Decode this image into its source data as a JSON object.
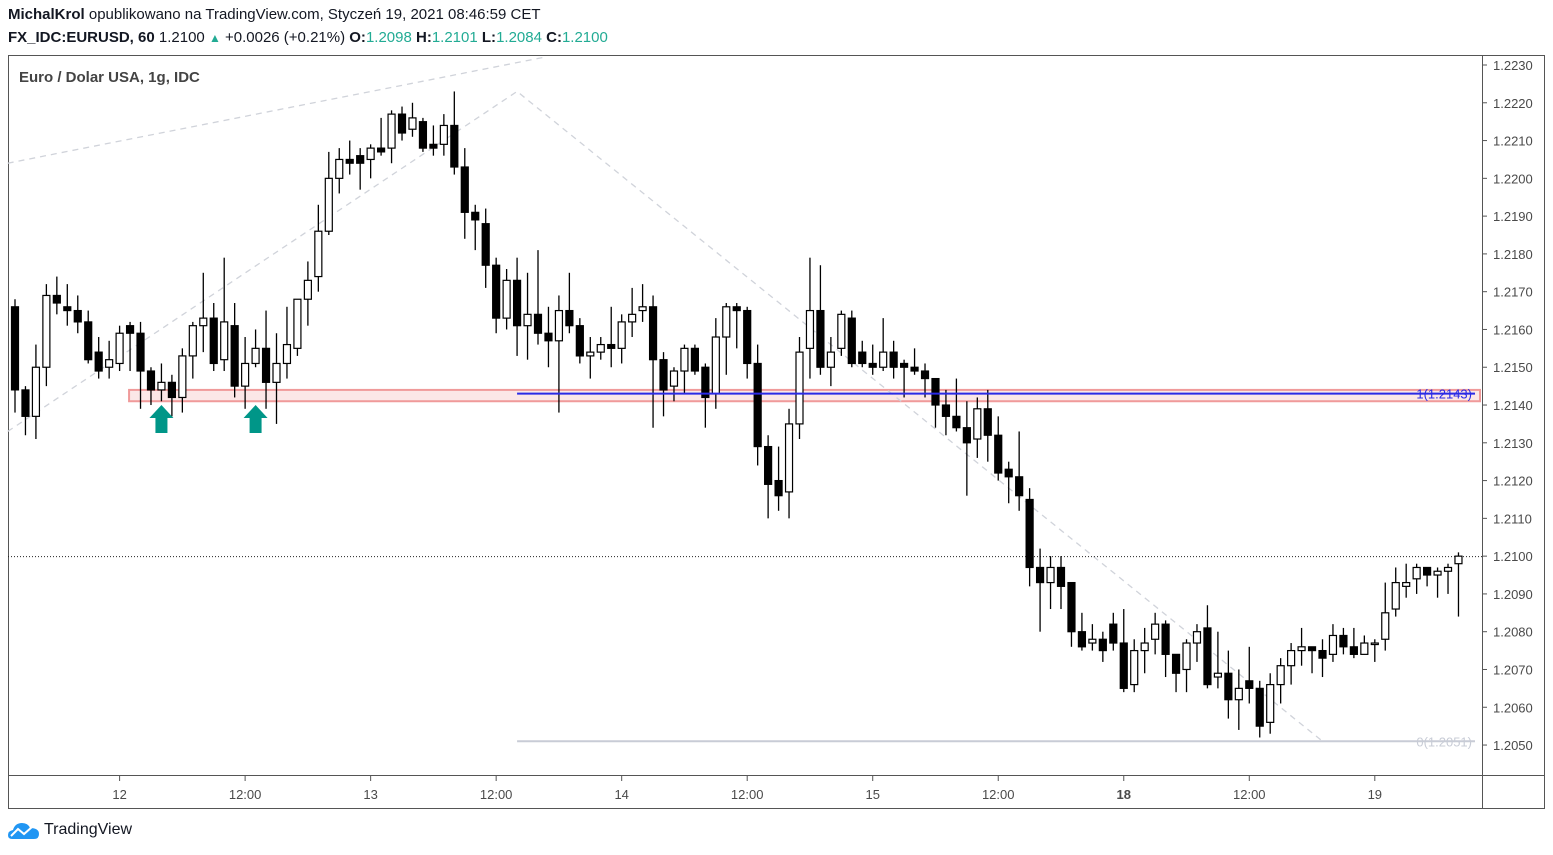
{
  "header": {
    "author": "MichalKrol",
    "published_text": "opublikowano na TradingView.com, Styczeń 19, 2021 08:46:59 CET",
    "symbol": "FX_IDC:EURUSD, 60",
    "last": "1.2100",
    "change": "+0.0026 (+0.21%)",
    "o_label": "O:",
    "o": "1.2098",
    "h_label": "H:",
    "h": "1.2101",
    "l_label": "L:",
    "l": "1.2084",
    "c_label": "C:",
    "c": "1.2100"
  },
  "footer": {
    "brand": "TradingView"
  },
  "colors": {
    "up_fill": "#ffffff",
    "down_fill": "#000000",
    "accent": "#22ab94",
    "level": "#2a2ae6",
    "zone": "#f09a9a",
    "zone_fill": "#fbe7e7",
    "fib0": "#c8ccd6"
  },
  "chart_data": {
    "type": "candlestick",
    "title": "Euro / Dolar USA, 1g, IDC",
    "interval": "1h",
    "ylim": [
      1.2043,
      1.2235
    ],
    "grid": false,
    "y_ticks": [
      "1.2230",
      "1.2220",
      "1.2210",
      "1.2200",
      "1.2190",
      "1.2180",
      "1.2170",
      "1.2160",
      "1.2150",
      "1.2140",
      "1.2130",
      "1.2120",
      "1.2110",
      "1.2100",
      "1.2090",
      "1.2080",
      "1.2070",
      "1.2060",
      "1.2050"
    ],
    "x_ticks": [
      {
        "label": "12",
        "index": 10,
        "bold": false
      },
      {
        "label": "12:00",
        "index": 22,
        "bold": false
      },
      {
        "label": "13",
        "index": 34,
        "bold": false
      },
      {
        "label": "12:00",
        "index": 46,
        "bold": false
      },
      {
        "label": "14",
        "index": 58,
        "bold": false
      },
      {
        "label": "12:00",
        "index": 70,
        "bold": false
      },
      {
        "label": "15",
        "index": 82,
        "bold": false
      },
      {
        "label": "12:00",
        "index": 94,
        "bold": false
      },
      {
        "label": "18",
        "index": 106,
        "bold": true
      },
      {
        "label": "12:00",
        "index": 118,
        "bold": false
      },
      {
        "label": "19",
        "index": 130,
        "bold": false
      }
    ],
    "candles_ohlc": [
      [
        1.2166,
        1.2168,
        1.2138,
        1.2144
      ],
      [
        1.2144,
        1.2145,
        1.2132,
        1.2137
      ],
      [
        1.2137,
        1.2156,
        1.2131,
        1.215
      ],
      [
        1.215,
        1.2172,
        1.2145,
        1.2169
      ],
      [
        1.2169,
        1.2174,
        1.2164,
        1.2167
      ],
      [
        1.2166,
        1.2172,
        1.2161,
        1.2165
      ],
      [
        1.2165,
        1.2169,
        1.2159,
        1.2162
      ],
      [
        1.2162,
        1.2165,
        1.2151,
        1.2152
      ],
      [
        1.2154,
        1.2158,
        1.2147,
        1.2149
      ],
      [
        1.215,
        1.2157,
        1.2147,
        1.2152
      ],
      [
        1.2151,
        1.2161,
        1.2149,
        1.2159
      ],
      [
        1.2161,
        1.2162,
        1.2149,
        1.2159
      ],
      [
        1.2159,
        1.2162,
        1.2139,
        1.2149
      ],
      [
        1.2149,
        1.215,
        1.214,
        1.2144
      ],
      [
        1.2144,
        1.2151,
        1.2141,
        1.2146
      ],
      [
        1.2146,
        1.2148,
        1.2137,
        1.2142
      ],
      [
        1.2142,
        1.2155,
        1.2138,
        1.2153
      ],
      [
        1.2153,
        1.2162,
        1.2147,
        1.2161
      ],
      [
        1.2161,
        1.2175,
        1.2154,
        1.2163
      ],
      [
        1.2163,
        1.2167,
        1.2149,
        1.2151
      ],
      [
        1.2152,
        1.2179,
        1.2149,
        1.2162
      ],
      [
        1.2161,
        1.2167,
        1.2142,
        1.2145
      ],
      [
        1.2145,
        1.2158,
        1.2139,
        1.2151
      ],
      [
        1.2151,
        1.216,
        1.215,
        1.2155
      ],
      [
        1.2155,
        1.2165,
        1.2139,
        1.2146
      ],
      [
        1.2146,
        1.2159,
        1.2135,
        1.2151
      ],
      [
        1.2151,
        1.2166,
        1.2147,
        1.2156
      ],
      [
        1.2155,
        1.2168,
        1.2153,
        1.2168
      ],
      [
        1.2168,
        1.2178,
        1.2161,
        1.2173
      ],
      [
        1.2174,
        1.2193,
        1.217,
        1.2186
      ],
      [
        1.2186,
        1.2207,
        1.2185,
        1.22
      ],
      [
        1.22,
        1.2208,
        1.2196,
        1.2205
      ],
      [
        1.2205,
        1.221,
        1.2201,
        1.2204
      ],
      [
        1.2206,
        1.2208,
        1.2197,
        1.2204
      ],
      [
        1.2205,
        1.2209,
        1.22,
        1.2208
      ],
      [
        1.2208,
        1.2216,
        1.2206,
        1.2207
      ],
      [
        1.2208,
        1.2218,
        1.2204,
        1.2217
      ],
      [
        1.2217,
        1.2219,
        1.221,
        1.2212
      ],
      [
        1.2213,
        1.222,
        1.2211,
        1.2216
      ],
      [
        1.2215,
        1.2216,
        1.2207,
        1.2208
      ],
      [
        1.2209,
        1.2214,
        1.2206,
        1.2208
      ],
      [
        1.2209,
        1.2217,
        1.2206,
        1.2214
      ],
      [
        1.2214,
        1.2223,
        1.2201,
        1.2203
      ],
      [
        1.2203,
        1.2208,
        1.2184,
        1.2191
      ],
      [
        1.2191,
        1.2193,
        1.2181,
        1.2189
      ],
      [
        1.2188,
        1.2192,
        1.2171,
        1.2177
      ],
      [
        1.2177,
        1.2179,
        1.2159,
        1.2163
      ],
      [
        1.2163,
        1.2176,
        1.216,
        1.2173
      ],
      [
        1.2173,
        1.2179,
        1.2153,
        1.2161
      ],
      [
        1.2161,
        1.2175,
        1.2152,
        1.2164
      ],
      [
        1.2164,
        1.2181,
        1.2156,
        1.2159
      ],
      [
        1.2159,
        1.2166,
        1.215,
        1.2157
      ],
      [
        1.2157,
        1.2169,
        1.2138,
        1.2165
      ],
      [
        1.2165,
        1.2175,
        1.2159,
        1.2161
      ],
      [
        1.2161,
        1.2163,
        1.2151,
        1.2153
      ],
      [
        1.2153,
        1.2158,
        1.2147,
        1.2154
      ],
      [
        1.2154,
        1.2158,
        1.2152,
        1.2156
      ],
      [
        1.2156,
        1.2166,
        1.215,
        1.2155
      ],
      [
        1.2155,
        1.2164,
        1.2151,
        1.2162
      ],
      [
        1.2162,
        1.2171,
        1.2158,
        1.2164
      ],
      [
        1.2165,
        1.2172,
        1.2162,
        1.2166
      ],
      [
        1.2166,
        1.2169,
        1.2134,
        1.2152
      ],
      [
        1.2152,
        1.2154,
        1.2137,
        1.2144
      ],
      [
        1.2145,
        1.215,
        1.2141,
        1.2149
      ],
      [
        1.2149,
        1.2156,
        1.2143,
        1.2155
      ],
      [
        1.2155,
        1.2156,
        1.2148,
        1.2149
      ],
      [
        1.215,
        1.2151,
        1.2134,
        1.2142
      ],
      [
        1.2143,
        1.2163,
        1.2139,
        1.2158
      ],
      [
        1.2158,
        1.2167,
        1.2148,
        1.2166
      ],
      [
        1.2166,
        1.2167,
        1.2155,
        1.2165
      ],
      [
        1.2165,
        1.2166,
        1.2147,
        1.2151
      ],
      [
        1.2151,
        1.2156,
        1.2124,
        1.2129
      ],
      [
        1.2129,
        1.2132,
        1.211,
        1.2119
      ],
      [
        1.212,
        1.2129,
        1.2112,
        1.2116
      ],
      [
        1.2117,
        1.2139,
        1.211,
        1.2135
      ],
      [
        1.2135,
        1.2158,
        1.2131,
        1.2154
      ],
      [
        1.2155,
        1.2179,
        1.2147,
        1.2165
      ],
      [
        1.2165,
        1.2177,
        1.2148,
        1.215
      ],
      [
        1.215,
        1.2158,
        1.2145,
        1.2154
      ],
      [
        1.2155,
        1.2165,
        1.2153,
        1.2164
      ],
      [
        1.2163,
        1.2165,
        1.215,
        1.2151
      ],
      [
        1.2154,
        1.2157,
        1.215,
        1.2151
      ],
      [
        1.2151,
        1.2156,
        1.2148,
        1.215
      ],
      [
        1.215,
        1.2163,
        1.2149,
        1.2154
      ],
      [
        1.2154,
        1.2157,
        1.2147,
        1.215
      ],
      [
        1.2151,
        1.2152,
        1.2142,
        1.215
      ],
      [
        1.215,
        1.2155,
        1.2148,
        1.2149
      ],
      [
        1.2149,
        1.2151,
        1.2142,
        1.2147
      ],
      [
        1.2147,
        1.2147,
        1.2134,
        1.214
      ],
      [
        1.214,
        1.2144,
        1.2132,
        1.2137
      ],
      [
        1.2137,
        1.2147,
        1.2133,
        1.2134
      ],
      [
        1.2134,
        1.2141,
        1.2116,
        1.213
      ],
      [
        1.2131,
        1.2142,
        1.2126,
        1.2139
      ],
      [
        1.2139,
        1.2144,
        1.2125,
        1.2132
      ],
      [
        1.2132,
        1.2137,
        1.212,
        1.2122
      ],
      [
        1.2123,
        1.2125,
        1.2114,
        1.2121
      ],
      [
        1.2121,
        1.2133,
        1.2112,
        1.2116
      ],
      [
        1.2115,
        1.2118,
        1.2092,
        1.2097
      ],
      [
        1.2097,
        1.2102,
        1.208,
        1.2093
      ],
      [
        1.2093,
        1.21,
        1.2086,
        1.2097
      ],
      [
        1.2097,
        1.21,
        1.2086,
        1.2092
      ],
      [
        1.2093,
        1.2093,
        1.2076,
        1.208
      ],
      [
        1.208,
        1.2085,
        1.2075,
        1.2076
      ],
      [
        1.2077,
        1.2082,
        1.2075,
        1.2078
      ],
      [
        1.2078,
        1.208,
        1.2072,
        1.2075
      ],
      [
        1.2082,
        1.2085,
        1.2075,
        1.2077
      ],
      [
        1.2077,
        1.2086,
        1.2064,
        1.2065
      ],
      [
        1.2066,
        1.2078,
        1.2064,
        1.2075
      ],
      [
        1.2075,
        1.2081,
        1.2069,
        1.2077
      ],
      [
        1.2078,
        1.2085,
        1.2074,
        1.2082
      ],
      [
        1.2082,
        1.2083,
        1.2068,
        1.2074
      ],
      [
        1.2074,
        1.2074,
        1.2064,
        1.2069
      ],
      [
        1.207,
        1.2078,
        1.2064,
        1.2077
      ],
      [
        1.2077,
        1.2082,
        1.2072,
        1.208
      ],
      [
        1.2081,
        1.2087,
        1.2065,
        1.2066
      ],
      [
        1.2068,
        1.208,
        1.2065,
        1.2069
      ],
      [
        1.2069,
        1.2075,
        1.2057,
        1.2062
      ],
      [
        1.2062,
        1.207,
        1.2054,
        1.2065
      ],
      [
        1.2067,
        1.2076,
        1.2061,
        1.2065
      ],
      [
        1.2065,
        1.2067,
        1.2052,
        1.2055
      ],
      [
        1.2056,
        1.2069,
        1.2053,
        1.2066
      ],
      [
        1.2066,
        1.2073,
        1.2061,
        1.2071
      ],
      [
        1.2071,
        1.2077,
        1.2066,
        1.2075
      ],
      [
        1.2075,
        1.2081,
        1.2071,
        1.2076
      ],
      [
        1.2076,
        1.2076,
        1.2069,
        1.2075
      ],
      [
        1.2075,
        1.2078,
        1.2068,
        1.2073
      ],
      [
        1.2074,
        1.2082,
        1.2072,
        1.2079
      ],
      [
        1.2079,
        1.2081,
        1.2074,
        1.2076
      ],
      [
        1.2076,
        1.2081,
        1.2073,
        1.2074
      ],
      [
        1.2074,
        1.2079,
        1.2074,
        1.2077
      ],
      [
        1.2077,
        1.2078,
        1.2072,
        1.2077
      ],
      [
        1.2078,
        1.2093,
        1.2075,
        1.2085
      ],
      [
        1.2086,
        1.2097,
        1.2084,
        1.2093
      ],
      [
        1.2092,
        1.2098,
        1.2089,
        1.2093
      ],
      [
        1.2094,
        1.2098,
        1.209,
        1.2097
      ],
      [
        1.2097,
        1.2097,
        1.2092,
        1.2095
      ],
      [
        1.2095,
        1.2097,
        1.2089,
        1.2096
      ],
      [
        1.2096,
        1.2098,
        1.209,
        1.2097
      ],
      [
        1.2098,
        1.2101,
        1.2084,
        1.21
      ]
    ],
    "last_price_line": 1.21,
    "support_zone": {
      "from_index": 11,
      "low": 1.2141,
      "high": 1.2144
    },
    "levels": [
      {
        "label": "1(1.2143)",
        "price": 1.2143,
        "from_index": 48,
        "color": "#2a2ae6"
      },
      {
        "label": "0(1.2051)",
        "price": 1.2051,
        "from_index": 48,
        "color": "#c8ccd6"
      }
    ],
    "dashed_lines": [
      [
        [
          -0.7,
          1.2204
        ],
        [
          50.5,
          1.2232
        ]
      ],
      [
        [
          -0.7,
          1.2133
        ],
        [
          48,
          1.2223
        ],
        [
          125,
          1.2051
        ]
      ]
    ],
    "arrows_up_at_index": [
      14,
      23
    ]
  }
}
